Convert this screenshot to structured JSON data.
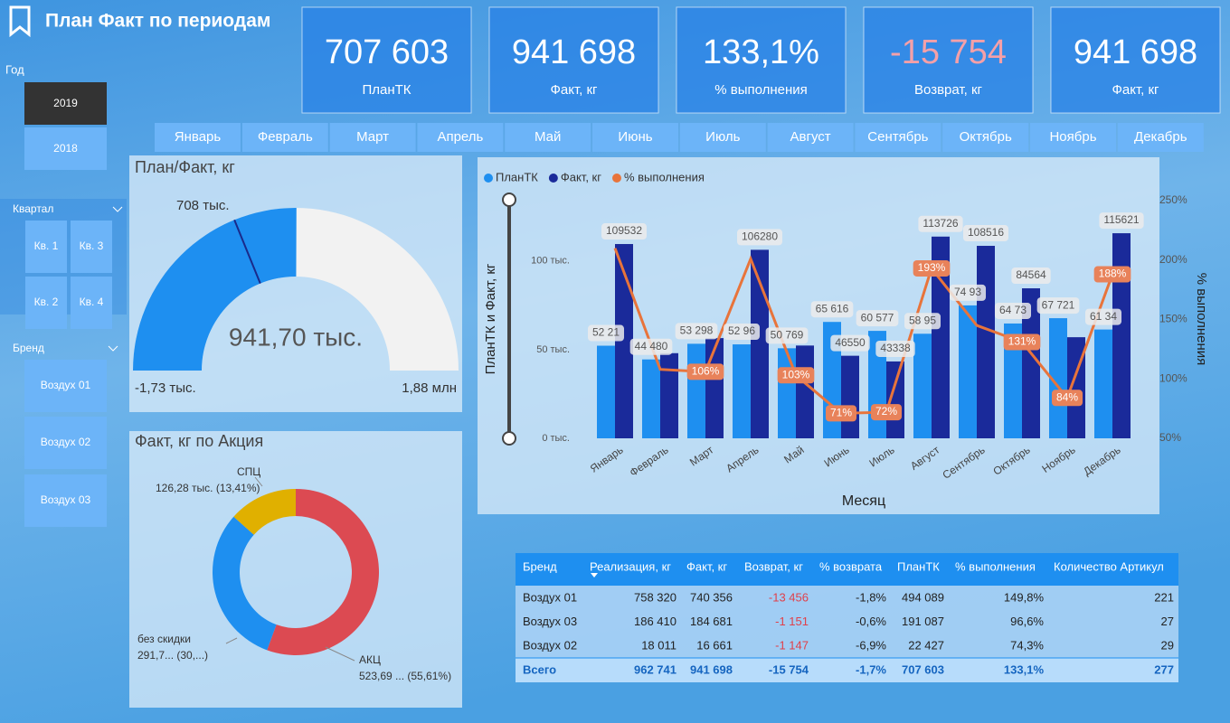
{
  "header": {
    "title": "План Факт по периодам"
  },
  "filters": {
    "year": {
      "title": "Год",
      "options": [
        "2019",
        "2018"
      ]
    },
    "quarter": {
      "title": "Квартал",
      "options": [
        "Кв. 1",
        "Кв. 3",
        "Кв. 2",
        "Кв. 4"
      ]
    },
    "brand": {
      "title": "Бренд",
      "options": [
        "Воздух 01",
        "Воздух 02",
        "Воздух 03"
      ]
    }
  },
  "kpis": [
    {
      "value": "707 603",
      "label": "ПланТК"
    },
    {
      "value": "941 698",
      "label": "Факт, кг"
    },
    {
      "value": "133,1%",
      "label": "% выполнения"
    },
    {
      "value": "-15 754",
      "label": "Возврат, кг"
    },
    {
      "value": "941 698",
      "label": "Факт, кг"
    }
  ],
  "months": [
    "Январь",
    "Февраль",
    "Март",
    "Апрель",
    "Май",
    "Июнь",
    "Июль",
    "Август",
    "Сентябрь",
    "Октябрь",
    "Ноябрь",
    "Декабрь"
  ],
  "table": {
    "header": [
      "Бренд",
      "Реализация, кг",
      "Факт, кг",
      "Возврат, кг",
      "% возврата",
      "ПланТК",
      "% выполнения",
      "Количество Артикул"
    ],
    "rows": [
      [
        "Воздух 01",
        "758 320",
        "740 356",
        "-13 456",
        "-1,8%",
        "494 089",
        "149,8%",
        "221"
      ],
      [
        "Воздух 03",
        "186 410",
        "184 681",
        "-1 151",
        "-0,6%",
        "191 087",
        "96,6%",
        "27"
      ],
      [
        "Воздух 02",
        "18 011",
        "16 661",
        "-1 147",
        "-6,9%",
        "22 427",
        "74,3%",
        "29"
      ]
    ],
    "total": [
      "Всего",
      "962 741",
      "941 698",
      "-15 754",
      "-1,7%",
      "707 603",
      "133,1%",
      "277"
    ]
  },
  "chart_data": [
    {
      "type": "gauge",
      "title": "План/Факт, кг",
      "range": [
        -1730,
        1880000
      ],
      "range_labels": [
        "-1,73 тыс.",
        "1,88 млн"
      ],
      "value": 941698,
      "value_label": "941,70 тыс.",
      "target": 707603,
      "target_label": "708 тыс.",
      "color": "#1e8ff0",
      "track_color": "#f2f2f2",
      "target_color": "#1a2a8a"
    },
    {
      "type": "donut",
      "title": "Факт, кг по Акция",
      "categories": [
        "АКЦ",
        "без скидки",
        "СПЦ"
      ],
      "values": [
        523690,
        291700,
        126280
      ],
      "value_labels": [
        "523,69 ... (55,61%)",
        "291,7... (30,...)",
        "126,28 тыс. (13,41%)"
      ],
      "colors": [
        "#dc4a52",
        "#1e8ff0",
        "#e0b000"
      ]
    },
    {
      "type": "bar_line",
      "x_label": "Месяц",
      "y_label": "ПланТК и Факт, кг",
      "y2_label": "% выполнения",
      "categories": [
        "Январь",
        "Февраль",
        "Март",
        "Апрель",
        "Май",
        "Июнь",
        "Июль",
        "Август",
        "Сентябрь",
        "Октябрь",
        "Ноябрь",
        "Декабрь"
      ],
      "series": [
        {
          "name": "ПланТК",
          "color": "#1e8ff0",
          "type": "bar",
          "values": [
            52210,
            44480,
            53298,
            52960,
            50769,
            65616,
            60577,
            58950,
            74930,
            64730,
            67721,
            61340
          ],
          "value_labels": [
            "52 21",
            "44 480",
            "53 298",
            "52 96",
            "50 769",
            "65 616",
            "60 577",
            "58 95",
            "74 93",
            "64 73",
            "67 721",
            "61 34"
          ]
        },
        {
          "name": "Факт, кг",
          "color": "#1a2a9a",
          "type": "bar",
          "values": [
            109532,
            48000,
            56500,
            106280,
            52300,
            46550,
            43338,
            113726,
            108516,
            84564,
            57000,
            115621
          ],
          "value_labels": [
            "109532",
            null,
            null,
            "106280",
            null,
            "46550",
            "43338",
            "113726",
            "108516",
            "84564",
            null,
            "115621"
          ]
        },
        {
          "name": "% выполнения",
          "color": "#e8743b",
          "type": "line",
          "axis": "y2",
          "values": [
            210,
            108,
            106,
            201,
            103,
            71,
            72,
            193,
            145,
            131,
            84,
            188
          ],
          "value_labels": [
            null,
            null,
            "106%",
            null,
            "103%",
            "71%",
            "72%",
            "193%",
            null,
            "131%",
            "84%",
            "188%"
          ]
        }
      ],
      "ylim": [
        0,
        134000
      ],
      "yticks": [
        {
          "value": 0,
          "label": "0 тыс."
        },
        {
          "value": 50000,
          "label": "50 тыс."
        },
        {
          "value": 100000,
          "label": "100 тыс."
        }
      ],
      "y2lim": [
        50,
        250
      ],
      "y2ticks": [
        {
          "value": 50,
          "label": "50%"
        },
        {
          "value": 100,
          "label": "100%"
        },
        {
          "value": 150,
          "label": "150%"
        },
        {
          "value": 200,
          "label": "200%"
        },
        {
          "value": 250,
          "label": "250%"
        }
      ]
    }
  ]
}
